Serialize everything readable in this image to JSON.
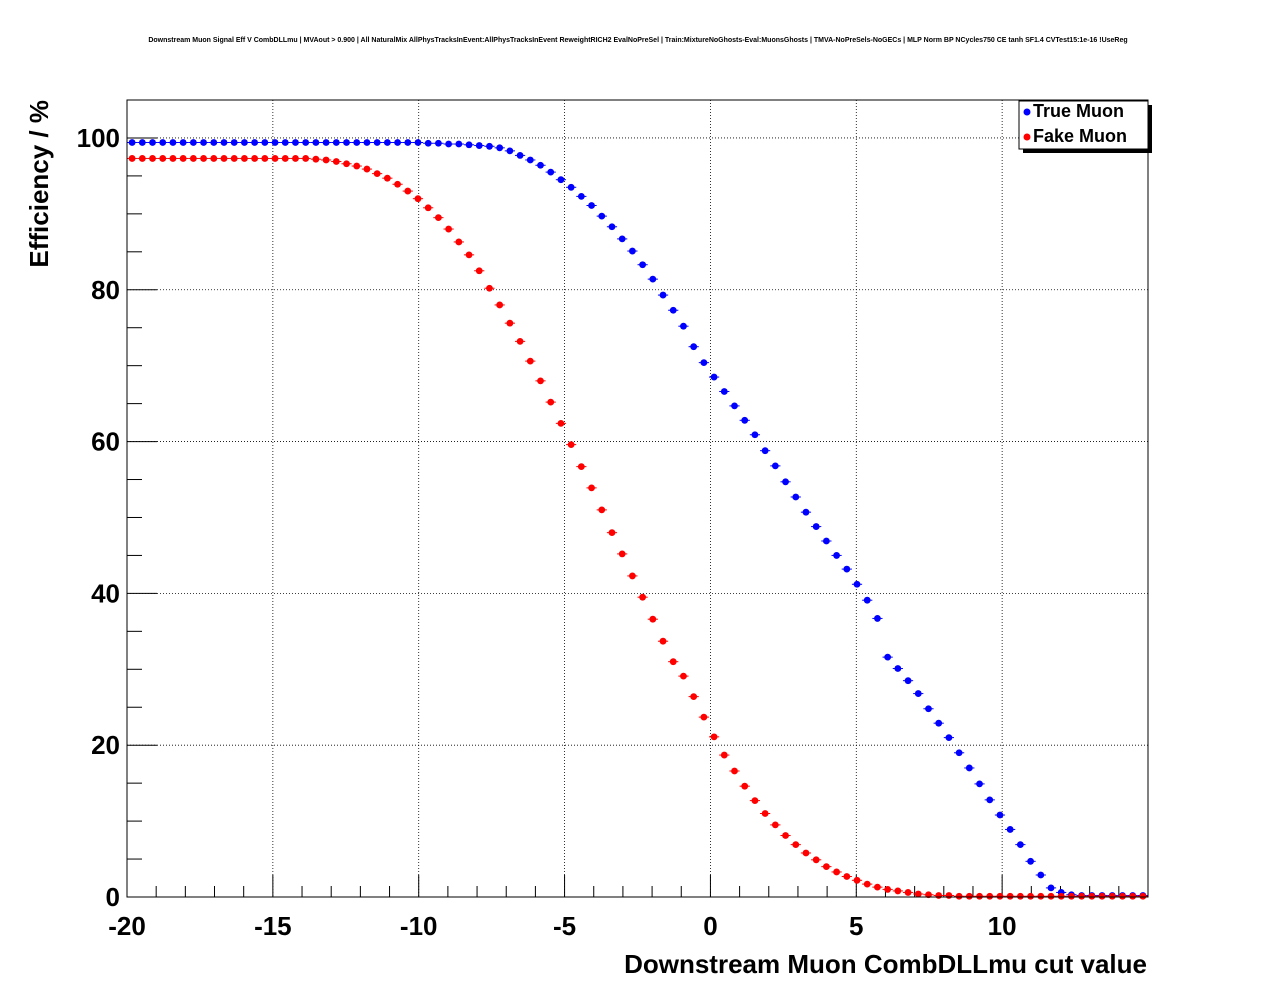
{
  "chart_data": {
    "type": "scatter",
    "title": "Downstream Muon Signal Eff V CombDLLmu | MVAout > 0.900 | All NaturalMix AllPhysTracksInEvent:AllPhysTracksInEvent ReweightRICH2 EvalNoPreSel | Train:MixtureNoGhosts-Eval:MuonsGhosts | TMVA-NoPreSels-NoGECs | MLP Norm BP NCycles750 CE tanh SF1.4 CVTest15:1e-16 !UseReg",
    "xlabel": "Downstream Muon CombDLLmu cut value",
    "ylabel": "Efficiency / %",
    "xlim": [
      -20,
      15
    ],
    "ylim": [
      0,
      105
    ],
    "xticks": [
      -20,
      -15,
      -10,
      -5,
      0,
      5,
      10
    ],
    "xtick_labels": [
      "-20",
      "-15",
      "-10",
      "-5",
      "0",
      "5",
      "10"
    ],
    "yticks": [
      0,
      20,
      40,
      60,
      80,
      100
    ],
    "ytick_labels": [
      "0",
      "20",
      "40",
      "60",
      "80",
      "100"
    ],
    "grid": true,
    "legend_position": "top-right",
    "x": [
      -19.825,
      -19.475,
      -19.125,
      -18.775,
      -18.425,
      -18.075,
      -17.725,
      -17.375,
      -17.025,
      -16.675,
      -16.325,
      -15.975,
      -15.625,
      -15.275,
      -14.925,
      -14.575,
      -14.225,
      -13.875,
      -13.525,
      -13.175,
      -12.825,
      -12.475,
      -12.125,
      -11.775,
      -11.425,
      -11.075,
      -10.725,
      -10.375,
      -10.025,
      -9.675,
      -9.325,
      -8.975,
      -8.625,
      -8.275,
      -7.925,
      -7.575,
      -7.225,
      -6.875,
      -6.525,
      -6.175,
      -5.825,
      -5.475,
      -5.125,
      -4.775,
      -4.425,
      -4.075,
      -3.725,
      -3.375,
      -3.025,
      -2.675,
      -2.325,
      -1.975,
      -1.625,
      -1.275,
      -0.925,
      -0.575,
      -0.225,
      0.125,
      0.475,
      0.825,
      1.175,
      1.525,
      1.875,
      2.225,
      2.575,
      2.925,
      3.275,
      3.625,
      3.975,
      4.325,
      4.675,
      5.025,
      5.375,
      5.725,
      6.075,
      6.425,
      6.775,
      7.125,
      7.475,
      7.825,
      8.175,
      8.525,
      8.875,
      9.225,
      9.575,
      9.925,
      10.275,
      10.625,
      10.975,
      11.325,
      11.675,
      12.025,
      12.375,
      12.725,
      13.075,
      13.425,
      13.775,
      14.125,
      14.475,
      14.825
    ],
    "series": [
      {
        "name": "True Muon",
        "color": "#0000ff",
        "values": [
          99.4,
          99.4,
          99.4,
          99.4,
          99.4,
          99.4,
          99.4,
          99.4,
          99.4,
          99.4,
          99.4,
          99.4,
          99.4,
          99.4,
          99.4,
          99.4,
          99.4,
          99.4,
          99.4,
          99.4,
          99.4,
          99.4,
          99.4,
          99.4,
          99.4,
          99.4,
          99.4,
          99.4,
          99.4,
          99.3,
          99.3,
          99.2,
          99.2,
          99.1,
          99.0,
          98.9,
          98.7,
          98.3,
          97.7,
          97.1,
          96.4,
          95.5,
          94.5,
          93.5,
          92.3,
          91.1,
          89.7,
          88.3,
          86.7,
          85.1,
          83.3,
          81.4,
          79.3,
          77.3,
          75.2,
          72.5,
          70.4,
          68.5,
          66.6,
          64.7,
          62.8,
          60.9,
          58.8,
          56.8,
          54.7,
          52.7,
          50.7,
          48.8,
          46.9,
          45.0,
          43.2,
          41.2,
          39.1,
          36.7,
          31.6,
          30.1,
          28.5,
          26.8,
          24.8,
          22.9,
          21.0,
          19.0,
          17.0,
          14.9,
          12.8,
          10.8,
          8.9,
          6.9,
          4.7,
          2.9,
          1.2,
          0.6,
          0.3,
          0.2,
          0.2,
          0.2,
          0.2,
          0.2,
          0.2,
          0.2
        ]
      },
      {
        "name": "Fake Muon",
        "color": "#ff0000",
        "values": [
          97.3,
          97.3,
          97.3,
          97.3,
          97.3,
          97.3,
          97.3,
          97.3,
          97.3,
          97.3,
          97.3,
          97.3,
          97.3,
          97.3,
          97.3,
          97.3,
          97.3,
          97.3,
          97.2,
          97.1,
          96.9,
          96.6,
          96.3,
          95.9,
          95.3,
          94.7,
          93.9,
          93.0,
          92.0,
          90.8,
          89.5,
          88.0,
          86.3,
          84.6,
          82.5,
          80.2,
          78.0,
          75.6,
          73.2,
          70.6,
          68.0,
          65.2,
          62.4,
          59.6,
          56.7,
          53.9,
          51.0,
          48.0,
          45.2,
          42.3,
          39.5,
          36.6,
          33.7,
          31.0,
          29.1,
          26.4,
          23.7,
          21.1,
          18.7,
          16.6,
          14.6,
          12.7,
          11.0,
          9.5,
          8.1,
          6.9,
          5.8,
          4.9,
          4.0,
          3.3,
          2.7,
          2.2,
          1.7,
          1.3,
          1.0,
          0.8,
          0.6,
          0.4,
          0.3,
          0.2,
          0.2,
          0.1,
          0.1,
          0.1,
          0.1,
          0.1,
          0.1,
          0.1,
          0.1,
          0.1,
          0.1,
          0.1,
          0.1,
          0.1,
          0.1,
          0.1,
          0.1,
          0.1,
          0.1,
          0.1
        ]
      }
    ]
  }
}
